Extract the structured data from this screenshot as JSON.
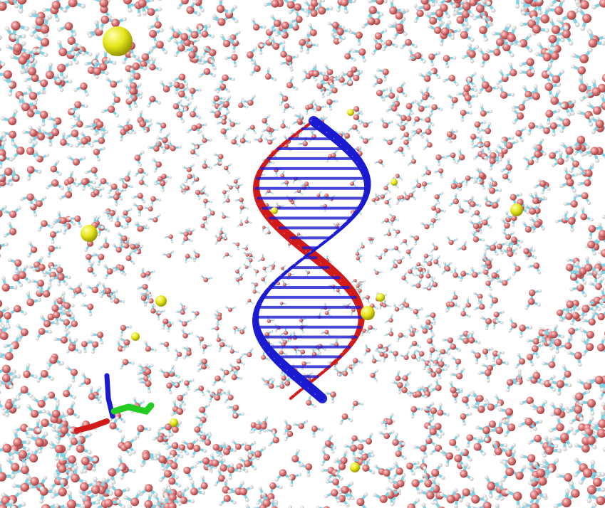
{
  "scene": {
    "background": "#ffffff",
    "water_oxygen_color": "#e07b7b",
    "water_hydrogen_color": "#f2f2f2",
    "water_bond_color": "#7fd3e6",
    "ion_color": "#e6e61a",
    "strand_a_color": "#1a1ad1",
    "strand_b_color": "#d11a1a",
    "ligand_color": "#22cc22"
  }
}
